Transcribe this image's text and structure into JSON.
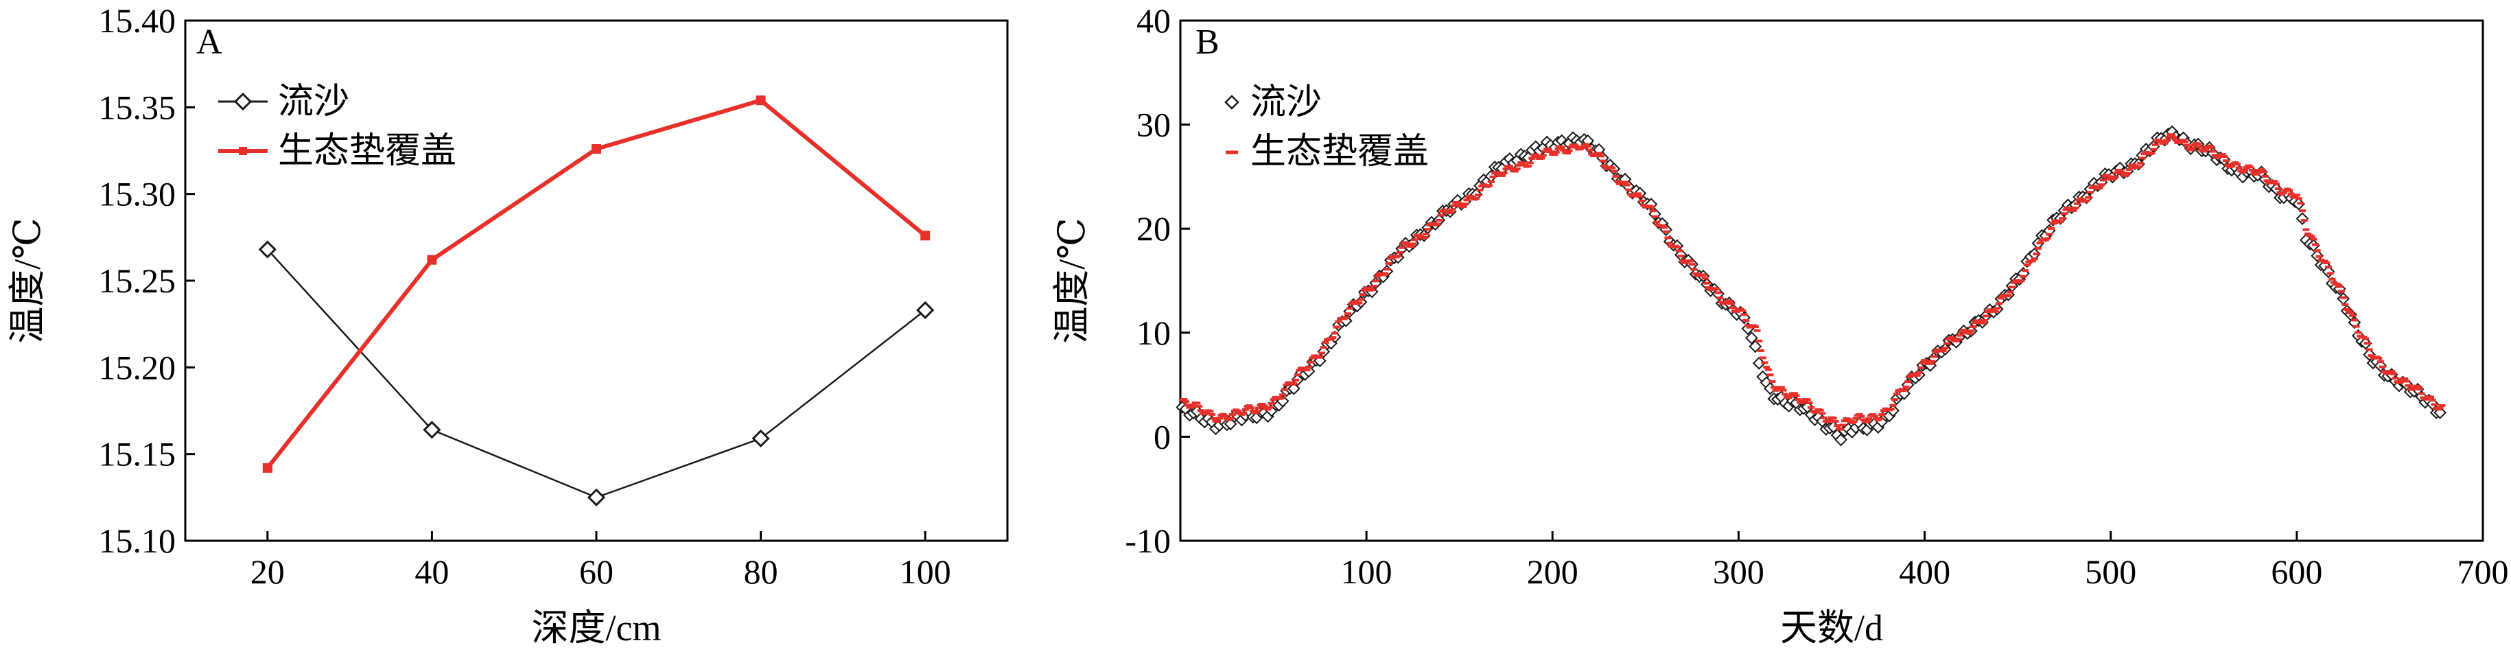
{
  "charts": {
    "A": {
      "panel_label": "A",
      "chart_data": {
        "type": "line",
        "xlabel": "深度/cm",
        "ylabel": "温度/℃",
        "x": [
          20,
          40,
          60,
          80,
          100
        ],
        "xlim": [
          10,
          110
        ],
        "ylim": [
          15.1,
          15.4
        ],
        "xticks": [
          "20",
          "40",
          "60",
          "80",
          "100"
        ],
        "yticks": [
          "15.10",
          "15.15",
          "15.20",
          "15.25",
          "15.30",
          "15.35",
          "15.40"
        ],
        "grid": false,
        "legend": "top-left",
        "series": [
          {
            "name": "流沙",
            "color": "#1a1a1a",
            "marker": "diamond",
            "values": [
              15.268,
              15.164,
              15.125,
              15.159,
              15.233
            ]
          },
          {
            "name": "生态垫覆盖",
            "color": "#e8302a",
            "marker": "square",
            "values": [
              15.142,
              15.262,
              15.326,
              15.354,
              15.276
            ]
          }
        ]
      }
    },
    "B": {
      "panel_label": "B",
      "chart_data": {
        "type": "scatter",
        "xlabel": "天数/d",
        "ylabel": "温度/℃",
        "xlim": [
          0,
          700
        ],
        "ylim": [
          -10,
          40
        ],
        "xticks": [
          "100",
          "200",
          "300",
          "400",
          "500",
          "600",
          "700"
        ],
        "yticks": [
          "-10",
          "0",
          "10",
          "20",
          "30",
          "40"
        ],
        "grid": false,
        "legend": "top-left",
        "series": [
          {
            "name": "流沙",
            "color": "#1a1a1a",
            "marker": "diamond",
            "points": [
              [
                1,
                2.5
              ],
              [
                10,
                1.8
              ],
              [
                20,
                1.3
              ],
              [
                30,
                1.6
              ],
              [
                40,
                2.0
              ],
              [
                50,
                2.8
              ],
              [
                60,
                4.5
              ],
              [
                70,
                6.8
              ],
              [
                80,
                9.0
              ],
              [
                90,
                11.5
              ],
              [
                100,
                14.0
              ],
              [
                110,
                15.8
              ],
              [
                120,
                18.0
              ],
              [
                130,
                19.8
              ],
              [
                140,
                21.0
              ],
              [
                150,
                22.5
              ],
              [
                160,
                24.0
              ],
              [
                170,
                25.5
              ],
              [
                180,
                26.8
              ],
              [
                190,
                27.6
              ],
              [
                200,
                27.8
              ],
              [
                210,
                28.6
              ],
              [
                215,
                28.8
              ],
              [
                220,
                28.0
              ],
              [
                230,
                26.0
              ],
              [
                240,
                24.5
              ],
              [
                250,
                22.5
              ],
              [
                260,
                20.0
              ],
              [
                270,
                17.5
              ],
              [
                280,
                15.0
              ],
              [
                290,
                13.5
              ],
              [
                300,
                12.0
              ],
              [
                305,
                10.5
              ],
              [
                310,
                7.5
              ],
              [
                315,
                5.0
              ],
              [
                320,
                4.0
              ],
              [
                330,
                3.0
              ],
              [
                340,
                2.0
              ],
              [
                350,
                1.0
              ],
              [
                355,
                0.0
              ],
              [
                360,
                0.5
              ],
              [
                370,
                1.0
              ],
              [
                380,
                2.0
              ],
              [
                390,
                4.5
              ],
              [
                400,
                7.0
              ],
              [
                410,
                8.5
              ],
              [
                420,
                9.5
              ],
              [
                430,
                11.5
              ],
              [
                440,
                12.5
              ],
              [
                450,
                15.0
              ],
              [
                460,
                18.5
              ],
              [
                470,
                20.5
              ],
              [
                480,
                22.5
              ],
              [
                490,
                24.0
              ],
              [
                500,
                25.0
              ],
              [
                510,
                26.0
              ],
              [
                520,
                27.5
              ],
              [
                530,
                28.8
              ],
              [
                535,
                29.2
              ],
              [
                540,
                28.5
              ],
              [
                550,
                27.5
              ],
              [
                560,
                26.5
              ],
              [
                570,
                25.5
              ],
              [
                580,
                25.0
              ],
              [
                590,
                23.5
              ],
              [
                600,
                23.0
              ],
              [
                605,
                19.0
              ],
              [
                610,
                17.5
              ],
              [
                620,
                15.0
              ],
              [
                625,
                13.5
              ],
              [
                630,
                11.0
              ],
              [
                635,
                9.0
              ],
              [
                640,
                7.5
              ],
              [
                650,
                6.0
              ],
              [
                660,
                4.5
              ],
              [
                670,
                3.5
              ],
              [
                678,
                2.5
              ]
            ]
          },
          {
            "name": "生态垫覆盖",
            "color": "#e8302a",
            "marker": "dash",
            "points": [
              [
                1,
                3.2
              ],
              [
                10,
                2.6
              ],
              [
                20,
                2.0
              ],
              [
                30,
                2.1
              ],
              [
                40,
                2.6
              ],
              [
                50,
                3.5
              ],
              [
                60,
                5.0
              ],
              [
                70,
                7.2
              ],
              [
                80,
                9.4
              ],
              [
                90,
                11.8
              ],
              [
                100,
                14.2
              ],
              [
                110,
                16.0
              ],
              [
                120,
                18.1
              ],
              [
                130,
                19.6
              ],
              [
                140,
                21.0
              ],
              [
                150,
                22.3
              ],
              [
                160,
                23.6
              ],
              [
                170,
                24.9
              ],
              [
                180,
                26.0
              ],
              [
                190,
                26.8
              ],
              [
                200,
                27.2
              ],
              [
                210,
                27.9
              ],
              [
                215,
                28.2
              ],
              [
                220,
                27.5
              ],
              [
                230,
                25.8
              ],
              [
                240,
                24.2
              ],
              [
                250,
                22.2
              ],
              [
                260,
                19.8
              ],
              [
                270,
                17.4
              ],
              [
                280,
                15.1
              ],
              [
                290,
                13.6
              ],
              [
                300,
                12.3
              ],
              [
                305,
                10.8
              ],
              [
                310,
                9.8
              ],
              [
                315,
                6.5
              ],
              [
                320,
                5.0
              ],
              [
                330,
                3.7
              ],
              [
                340,
                2.7
              ],
              [
                350,
                1.8
              ],
              [
                355,
                1.0
              ],
              [
                360,
                1.4
              ],
              [
                370,
                1.8
              ],
              [
                380,
                2.6
              ],
              [
                390,
                4.8
              ],
              [
                400,
                7.2
              ],
              [
                410,
                8.6
              ],
              [
                420,
                9.6
              ],
              [
                430,
                11.4
              ],
              [
                440,
                12.6
              ],
              [
                450,
                14.8
              ],
              [
                460,
                18.0
              ],
              [
                470,
                20.2
              ],
              [
                480,
                22.2
              ],
              [
                490,
                23.7
              ],
              [
                500,
                24.8
              ],
              [
                510,
                25.8
              ],
              [
                520,
                27.2
              ],
              [
                530,
                28.5
              ],
              [
                535,
                28.9
              ],
              [
                540,
                28.3
              ],
              [
                550,
                27.6
              ],
              [
                560,
                26.8
              ],
              [
                570,
                26.0
              ],
              [
                580,
                25.2
              ],
              [
                590,
                24.0
              ],
              [
                600,
                23.4
              ],
              [
                605,
                20.0
              ],
              [
                610,
                18.0
              ],
              [
                620,
                15.4
              ],
              [
                625,
                13.6
              ],
              [
                630,
                11.2
              ],
              [
                635,
                9.4
              ],
              [
                640,
                8.0
              ],
              [
                650,
                6.3
              ],
              [
                660,
                4.8
              ],
              [
                670,
                3.8
              ],
              [
                678,
                3.0
              ]
            ]
          }
        ]
      }
    }
  }
}
